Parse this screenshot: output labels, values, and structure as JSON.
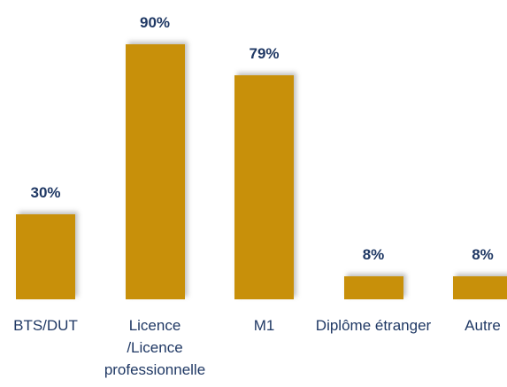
{
  "chart_data": {
    "type": "bar",
    "categories": [
      "BTS/DUT",
      "Licence /Licence professionnelle",
      "M1",
      "Diplôme étranger",
      "Autre"
    ],
    "values": [
      30,
      90,
      79,
      8,
      8
    ],
    "value_labels": [
      "30%",
      "90%",
      "79%",
      "8%",
      "8%"
    ],
    "color": "#c8900a"
  }
}
